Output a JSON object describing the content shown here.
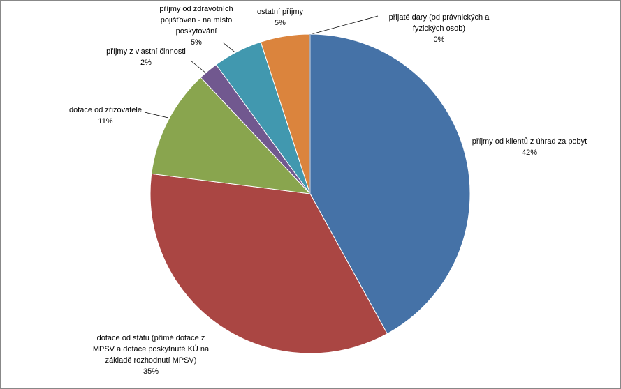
{
  "chart_data": {
    "type": "pie",
    "categories": [
      "příjmy od klientů z úhrad za pobyt",
      "dotace od státu (přímé dotace z MPSV a dotace poskytnuté KÚ na základě rozhodnutí MPSV)",
      "dotace od zřizovatele",
      "příjmy z vlastní činnosti",
      "příjmy od zdravotních pojišťoven - na místo poskytování",
      "ostatní příjmy",
      "přijaté dary (od právnických a fyzických osob)"
    ],
    "values": [
      42,
      35,
      11,
      2,
      5,
      5,
      0
    ],
    "value_labels": [
      "42%",
      "35%",
      "11%",
      "2%",
      "5%",
      "5%",
      "0%"
    ],
    "colors": [
      "#4572a7",
      "#aa4643",
      "#89a54e",
      "#71588f",
      "#4198af",
      "#db843d",
      "#a0b4d0"
    ]
  }
}
